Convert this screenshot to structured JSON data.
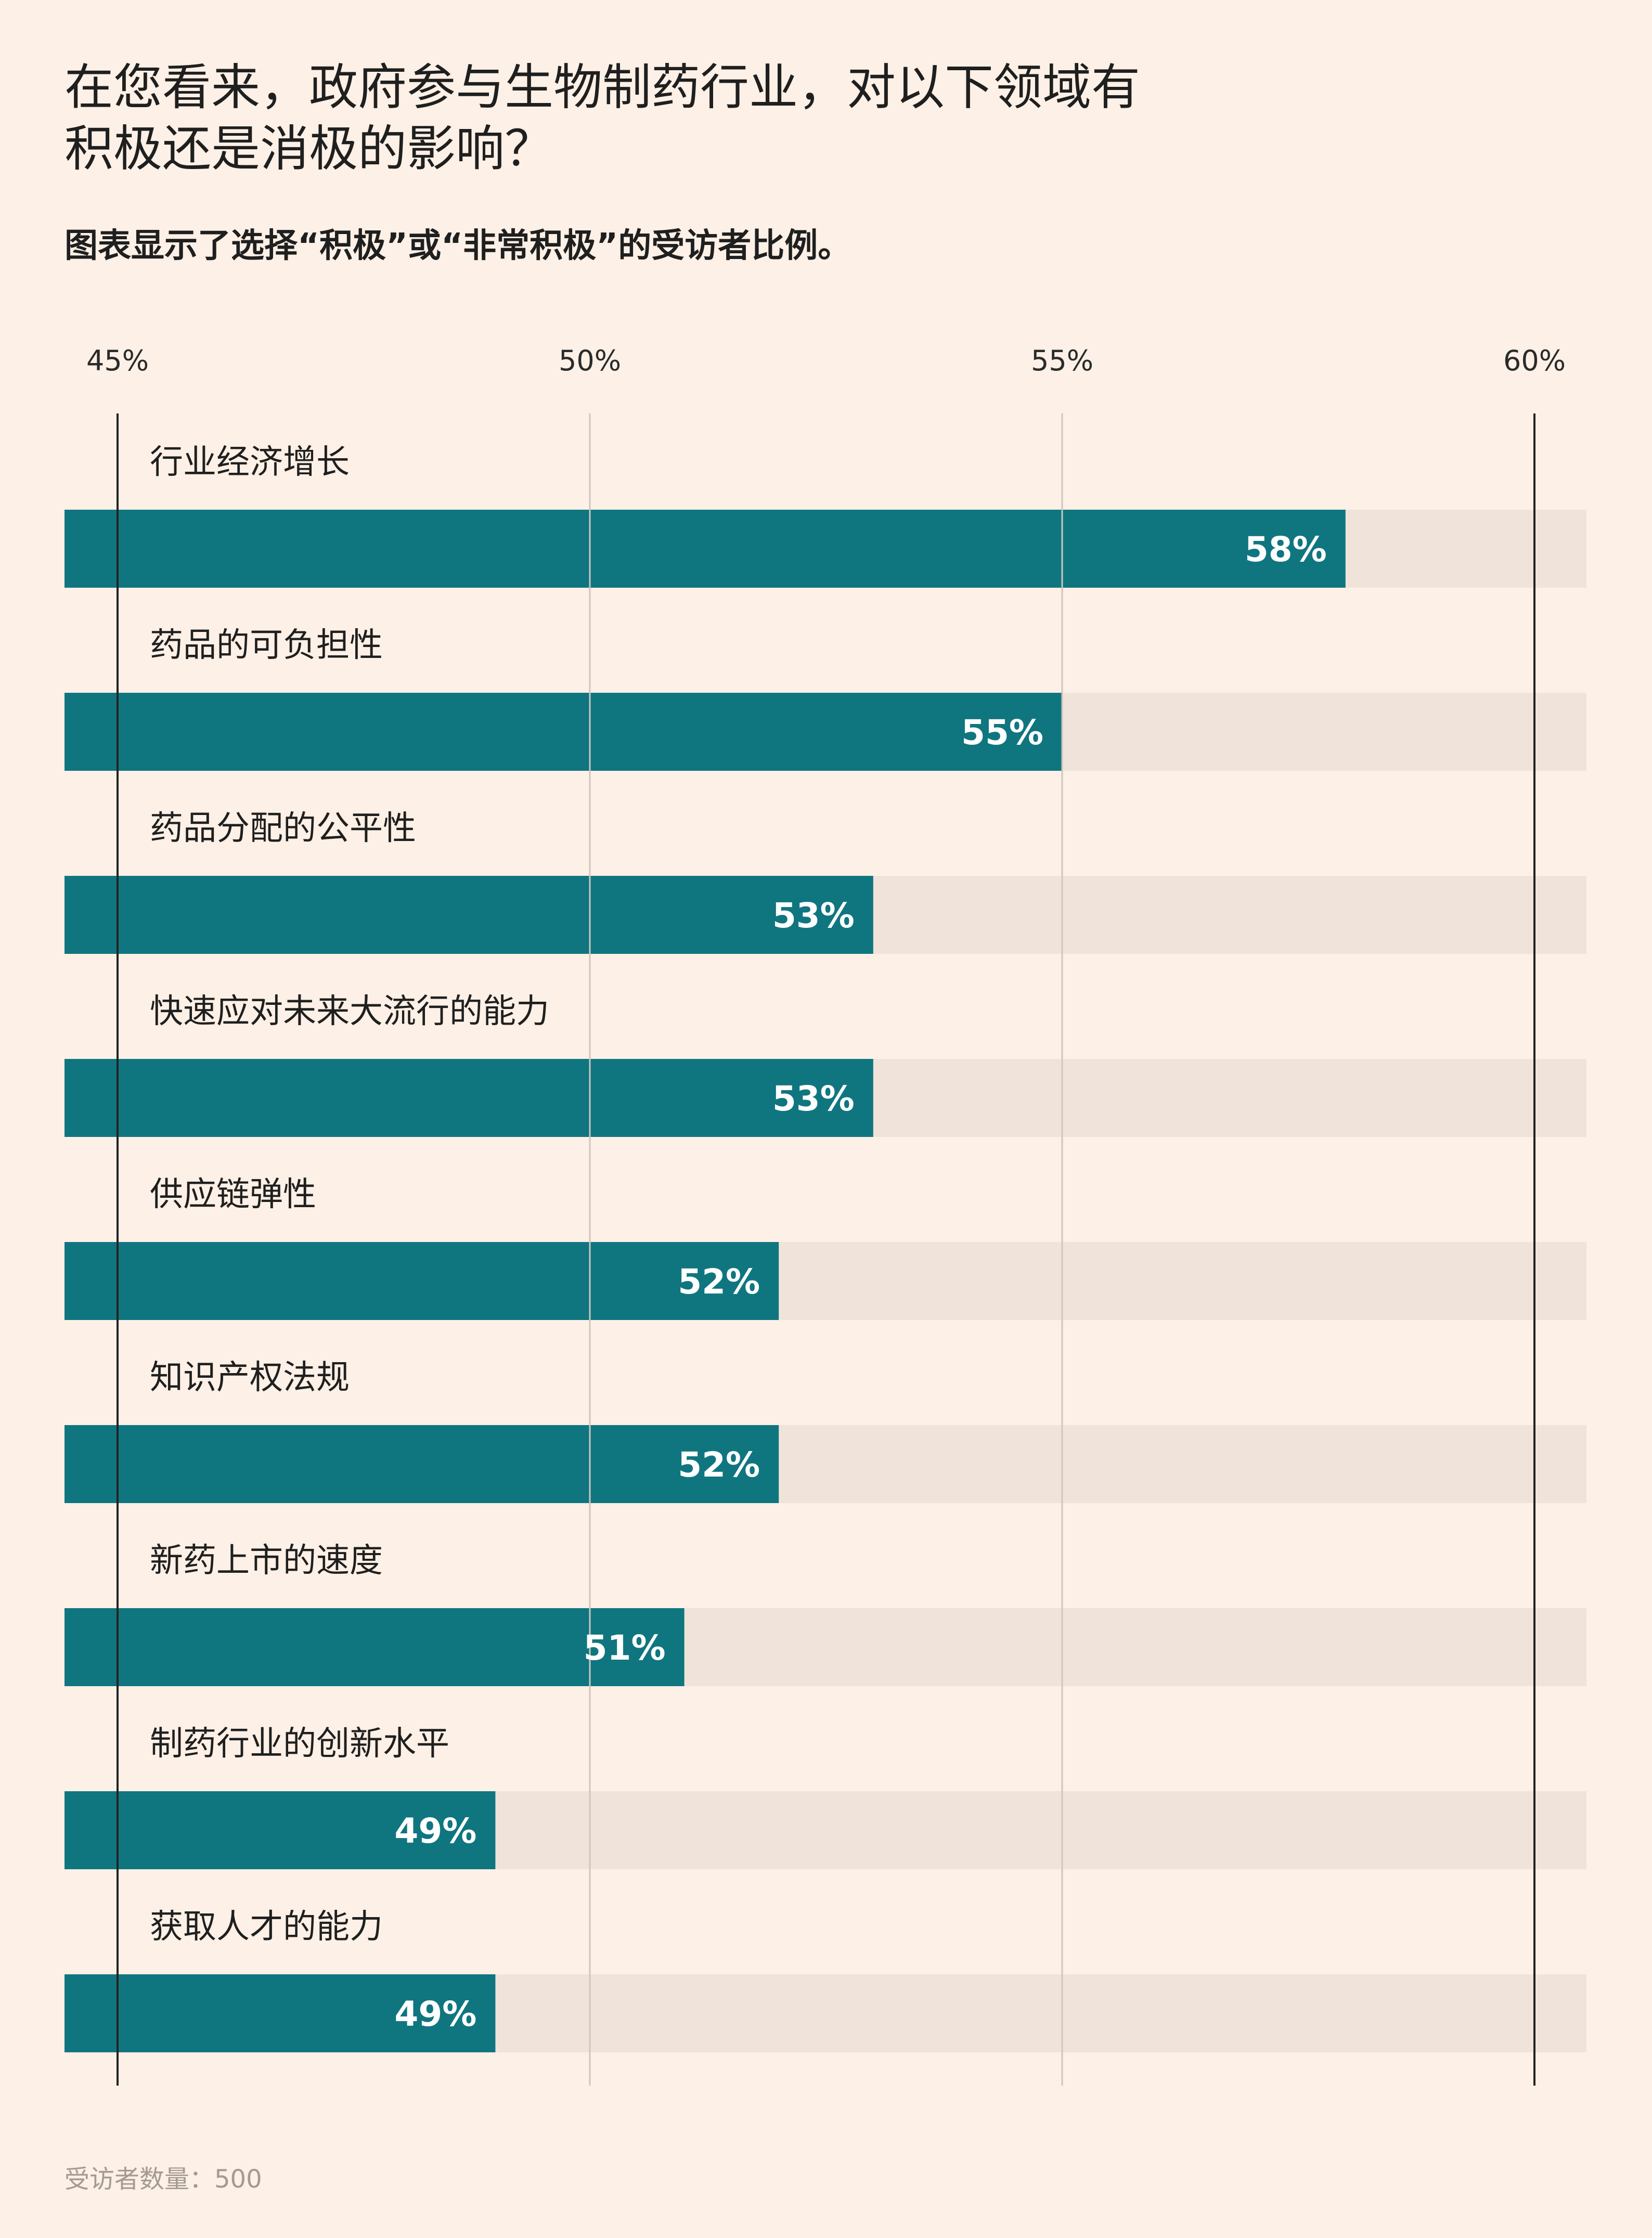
{
  "title": "在您看来，政府参与生物制药行业，对以下领域有积极还是消极的影响？",
  "subtitle": "图表显示了选择“积极”或“非常积极”的受访者比例。",
  "footnote": "受访者数量：500",
  "colors": {
    "background": "#fdf0e6",
    "bar": "#0f7680",
    "track": "#f0e4da",
    "value_label": "#ffffff",
    "axis_line": "#222222",
    "grid_line": "#cfc6bd"
  },
  "chart_data": {
    "type": "bar",
    "orientation": "horizontal",
    "xlim": [
      45,
      60
    ],
    "ticks": [
      "45%",
      "50%",
      "55%",
      "60%"
    ],
    "tick_values": [
      45,
      50,
      55,
      60
    ],
    "categories": [
      "行业经济增长",
      "药品的可负担性",
      "药品分配的公平性",
      "快速应对未来大流行的能力",
      "供应链弹性",
      "知识产权法规",
      "新药上市的速度",
      "制药行业的创新水平",
      "获取人才的能力"
    ],
    "values": [
      58,
      55,
      53,
      53,
      52,
      52,
      51,
      49,
      49
    ],
    "value_labels": [
      "58%",
      "55%",
      "53%",
      "53%",
      "52%",
      "52%",
      "51%",
      "49%",
      "49%"
    ]
  }
}
